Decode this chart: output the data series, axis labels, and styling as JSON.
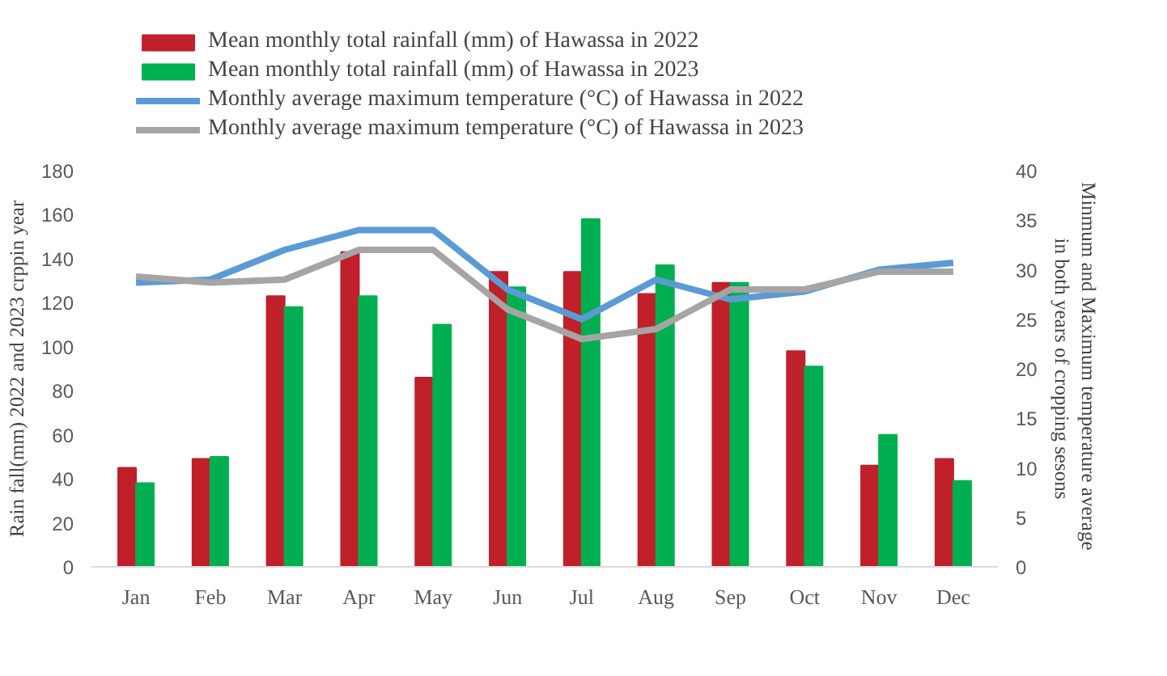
{
  "chart_data": {
    "type": "bar",
    "categories": [
      "Jan",
      "Feb",
      "Mar",
      "Apr",
      "May",
      "Jun",
      "Jul",
      "Aug",
      "Sep",
      "Oct",
      "Nov",
      "Dec"
    ],
    "ylabel": "Rain fall(mm) 2022 and 2023 crppin year",
    "y2label": "Minmum and Maximum temperature  average\nin both years of cropping sesons",
    "ylim": [
      0,
      180
    ],
    "yticks": [
      0,
      20,
      40,
      60,
      80,
      100,
      120,
      140,
      160,
      180
    ],
    "y2lim": [
      0,
      40
    ],
    "y2ticks": [
      0,
      5,
      10,
      15,
      20,
      25,
      30,
      35,
      40
    ],
    "grid": false,
    "legend": "top",
    "series": [
      {
        "name": "Mean monthly total rainfall (mm) of Hawassa in 2022",
        "color": "#c0202a",
        "values": [
          45,
          49,
          123,
          143,
          86,
          134,
          134,
          124,
          129,
          98,
          46,
          49
        ]
      },
      {
        "name": "Mean monthly total rainfall (mm) of Hawassa in 2023",
        "color": "#00b050",
        "values": [
          38,
          50,
          118,
          123,
          110,
          127,
          158,
          137,
          129,
          91,
          60,
          39
        ]
      },
      {
        "name": "Monthly average maximum temperature (°C) of Hawassa in 2022",
        "type": "line",
        "axis": "y2",
        "color": "#5b9bd5",
        "values": [
          28.7,
          29,
          32,
          34,
          34,
          28,
          25,
          29,
          27,
          27.8,
          30,
          30.7
        ]
      },
      {
        "name": "Monthly average maximum temperature (°C) of Hawassa in 2023",
        "type": "line",
        "axis": "y2",
        "color": "#a5a5a5",
        "values": [
          29.3,
          28.7,
          29,
          32,
          32,
          26,
          23,
          24,
          28,
          28,
          29.8,
          29.8
        ]
      }
    ]
  }
}
